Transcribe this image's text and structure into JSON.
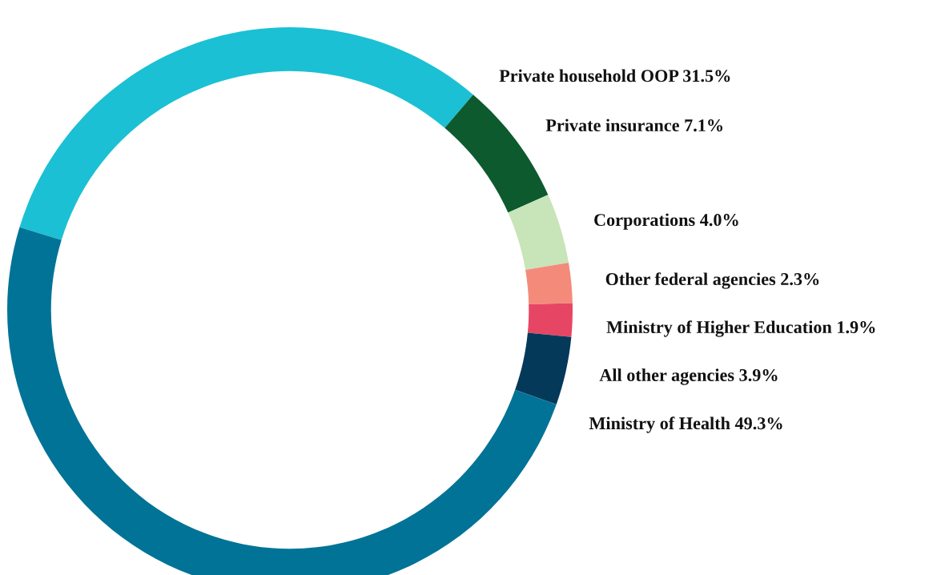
{
  "chart_data": {
    "type": "donut",
    "categories": [
      "Private household OOP",
      "Private insurance",
      "Corporations",
      "Other federal agencies",
      "Ministry of Higher Education",
      "All other agencies",
      "Ministry of Health"
    ],
    "values": [
      31.5,
      7.1,
      4.0,
      2.3,
      1.9,
      3.9,
      49.3
    ],
    "colors": [
      "#1bc0d4",
      "#0d5a2e",
      "#c8e4b9",
      "#f48b7a",
      "#e64664",
      "#05395a",
      "#017397"
    ],
    "value_labels": [
      "31.5%",
      "7.1%",
      "4.0%",
      "2.3%",
      "1.9%",
      "3.9%",
      "49.3%"
    ]
  }
}
